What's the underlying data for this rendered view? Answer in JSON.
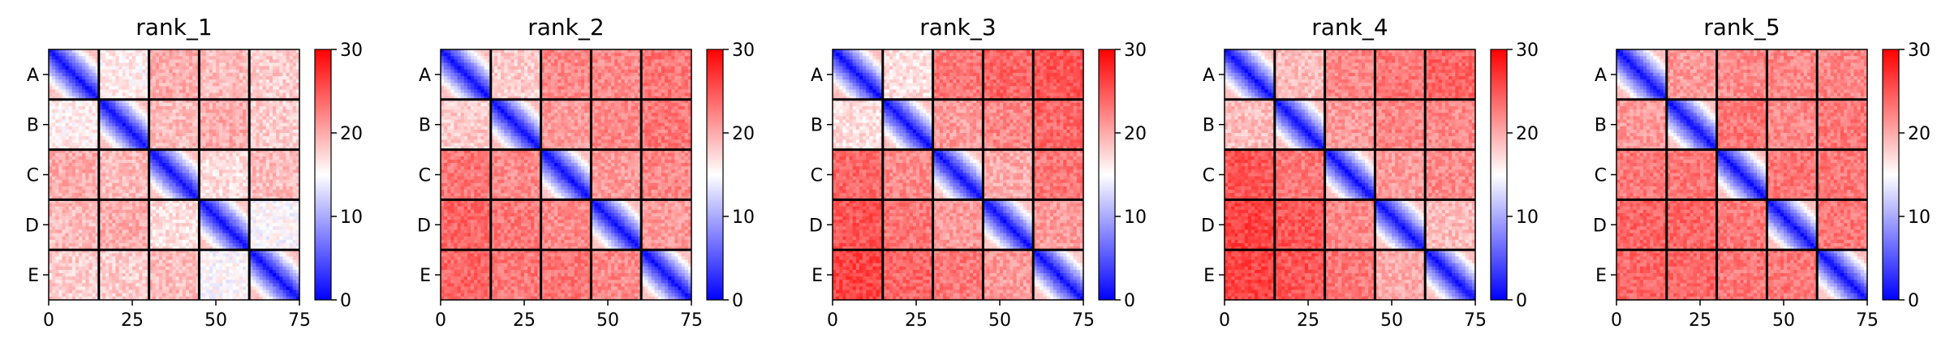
{
  "chart_data": [
    {
      "type": "heatmap",
      "title": "rank_1",
      "blocks": [
        "A",
        "B",
        "C",
        "D",
        "E"
      ],
      "block_size": 15,
      "n": 75,
      "x_ticks": [
        0,
        25,
        50,
        75
      ],
      "colorbar": {
        "vmin": 0,
        "vmax": 30,
        "ticks": [
          0,
          10,
          20,
          30
        ],
        "cmap": "bwr"
      },
      "block_means": [
        [
          6,
          16,
          20,
          19,
          18
        ],
        [
          16,
          6,
          19,
          20,
          18
        ],
        [
          20,
          19,
          6,
          17,
          19
        ],
        [
          19,
          20,
          17,
          6,
          15
        ],
        [
          18,
          18,
          19,
          15,
          6
        ]
      ]
    },
    {
      "type": "heatmap",
      "title": "rank_2",
      "blocks": [
        "A",
        "B",
        "C",
        "D",
        "E"
      ],
      "block_size": 15,
      "n": 75,
      "x_ticks": [
        0,
        25,
        50,
        75
      ],
      "colorbar": {
        "vmin": 0,
        "vmax": 30,
        "ticks": [
          0,
          10,
          20,
          30
        ],
        "cmap": "bwr"
      },
      "block_means": [
        [
          6,
          18,
          22,
          22,
          23
        ],
        [
          18,
          6,
          21,
          22,
          23
        ],
        [
          23,
          22,
          6,
          21,
          22
        ],
        [
          24,
          23,
          22,
          6,
          21
        ],
        [
          24,
          23,
          23,
          22,
          6
        ]
      ]
    },
    {
      "type": "heatmap",
      "title": "rank_3",
      "blocks": [
        "A",
        "B",
        "C",
        "D",
        "E"
      ],
      "block_size": 15,
      "n": 75,
      "x_ticks": [
        0,
        25,
        50,
        75
      ],
      "colorbar": {
        "vmin": 0,
        "vmax": 30,
        "ticks": [
          0,
          10,
          20,
          30
        ],
        "cmap": "bwr"
      },
      "block_means": [
        [
          6,
          17,
          23,
          24,
          25
        ],
        [
          17,
          6,
          21,
          22,
          24
        ],
        [
          24,
          22,
          6,
          20,
          23
        ],
        [
          25,
          23,
          21,
          6,
          21
        ],
        [
          26,
          24,
          23,
          21,
          6
        ]
      ]
    },
    {
      "type": "heatmap",
      "title": "rank_4",
      "blocks": [
        "A",
        "B",
        "C",
        "D",
        "E"
      ],
      "block_size": 15,
      "n": 75,
      "x_ticks": [
        0,
        25,
        50,
        75
      ],
      "colorbar": {
        "vmin": 0,
        "vmax": 30,
        "ticks": [
          0,
          10,
          20,
          30
        ],
        "cmap": "bwr"
      },
      "block_means": [
        [
          6,
          19,
          22,
          23,
          24
        ],
        [
          19,
          6,
          21,
          22,
          22
        ],
        [
          25,
          23,
          6,
          21,
          22
        ],
        [
          26,
          25,
          22,
          6,
          19
        ],
        [
          26,
          25,
          23,
          20,
          6
        ]
      ]
    },
    {
      "type": "heatmap",
      "title": "rank_5",
      "blocks": [
        "A",
        "B",
        "C",
        "D",
        "E"
      ],
      "block_size": 15,
      "n": 75,
      "x_ticks": [
        0,
        25,
        50,
        75
      ],
      "colorbar": {
        "vmin": 0,
        "vmax": 30,
        "ticks": [
          0,
          10,
          20,
          30
        ],
        "cmap": "bwr"
      },
      "block_means": [
        [
          6,
          21,
          22,
          22,
          22
        ],
        [
          21,
          6,
          23,
          22,
          23
        ],
        [
          23,
          23,
          6,
          23,
          23
        ],
        [
          24,
          24,
          23,
          6,
          23
        ],
        [
          24,
          24,
          23,
          23,
          6
        ]
      ]
    }
  ]
}
